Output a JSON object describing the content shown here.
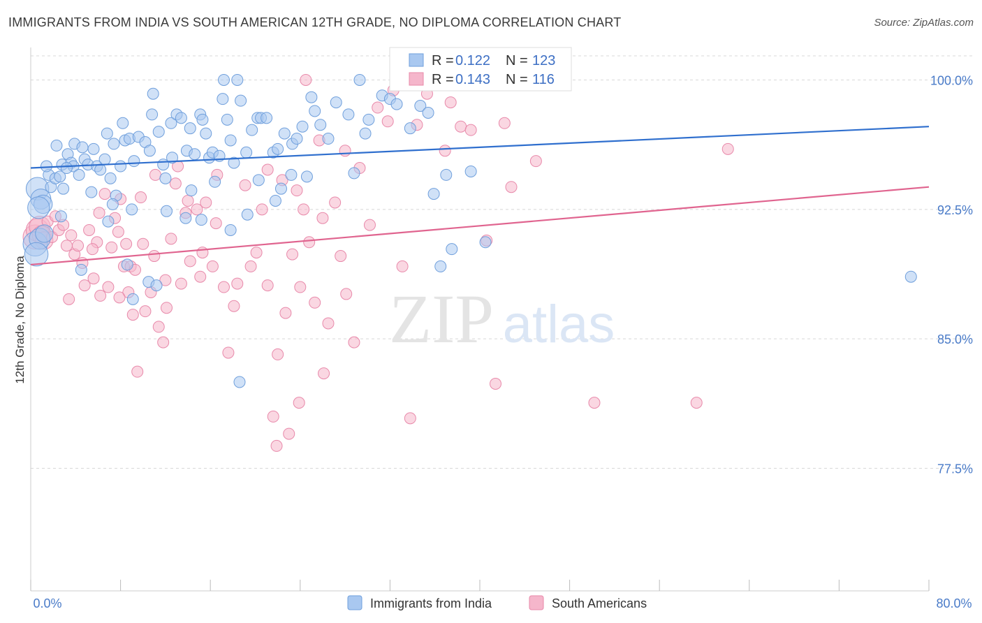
{
  "header": {
    "title": "IMMIGRANTS FROM INDIA VS SOUTH AMERICAN 12TH GRADE, NO DIPLOMA CORRELATION CHART",
    "source": "Source: ZipAtlas.com"
  },
  "watermark": {
    "zip": "ZIP",
    "atlas": "atlas"
  },
  "legend_box": {
    "rows": [
      {
        "r_key": "R =",
        "r_value": "0.122",
        "n_key": "N =",
        "n_value": "123",
        "color": "#8ab4e8"
      },
      {
        "r_key": "R =",
        "r_value": "0.143",
        "n_key": "N =",
        "n_value": "116",
        "color": "#f0a0bc"
      }
    ]
  },
  "colors": {
    "india_fill": "#a9c8f0",
    "india_stroke": "#6f9fdc",
    "india_line": "#2f6fce",
    "sa_fill": "#f5b6cb",
    "sa_stroke": "#e889aa",
    "sa_line": "#e0648f",
    "axis_text": "#4a7bc8",
    "grid": "#d8d8d8"
  },
  "chart_data": {
    "type": "scatter",
    "title": "IMMIGRANTS FROM INDIA VS SOUTH AMERICAN 12TH GRADE, NO DIPLOMA CORRELATION CHART",
    "xlabel": "",
    "ylabel": "12th Grade, No Diploma",
    "xlim": [
      0,
      80
    ],
    "ylim": [
      70.4,
      101.8
    ],
    "x_tick_labels": [
      "0.0%",
      "80.0%"
    ],
    "y_ticks": [
      77.5,
      85.0,
      92.5,
      100.0
    ],
    "y_tick_labels": [
      "77.5%",
      "85.0%",
      "92.5%",
      "100.0%"
    ],
    "grid": "horizontal dashed",
    "legend_placement": "bottom-center",
    "series": [
      {
        "name": "Immigrants from India",
        "R": 0.122,
        "N": 123,
        "trend": {
          "x": [
            0,
            80
          ],
          "y": [
            94.9,
            97.3
          ]
        },
        "points": [
          [
            0.6,
            93.7
          ],
          [
            0.9,
            93.1
          ],
          [
            1.1,
            92.8
          ],
          [
            1.6,
            94.5
          ],
          [
            1.8,
            93.8
          ],
          [
            2.2,
            94.3
          ],
          [
            2.6,
            94.4
          ],
          [
            2.8,
            95.1
          ],
          [
            2.9,
            93.7
          ],
          [
            3.3,
            95.7
          ],
          [
            3.6,
            95.2
          ],
          [
            3.8,
            95.0
          ],
          [
            3.9,
            96.3
          ],
          [
            4.3,
            94.5
          ],
          [
            4.6,
            96.1
          ],
          [
            4.8,
            95.4
          ],
          [
            5.1,
            95.1
          ],
          [
            5.6,
            96.0
          ],
          [
            5.9,
            95.0
          ],
          [
            6.2,
            94.8
          ],
          [
            6.6,
            95.4
          ],
          [
            6.8,
            96.9
          ],
          [
            7.1,
            94.3
          ],
          [
            7.4,
            96.3
          ],
          [
            7.6,
            93.3
          ],
          [
            8.0,
            95.0
          ],
          [
            8.2,
            97.5
          ],
          [
            8.4,
            96.5
          ],
          [
            8.8,
            96.6
          ],
          [
            9.2,
            95.3
          ],
          [
            9.6,
            96.7
          ],
          [
            10.2,
            96.4
          ],
          [
            10.6,
            95.9
          ],
          [
            10.8,
            98.0
          ],
          [
            10.9,
            99.2
          ],
          [
            11.4,
            97.0
          ],
          [
            11.8,
            95.1
          ],
          [
            12.0,
            94.3
          ],
          [
            12.5,
            97.5
          ],
          [
            12.6,
            95.5
          ],
          [
            13.0,
            98.0
          ],
          [
            13.4,
            97.8
          ],
          [
            13.9,
            95.9
          ],
          [
            14.2,
            97.2
          ],
          [
            14.6,
            95.7
          ],
          [
            15.1,
            98.0
          ],
          [
            15.3,
            97.7
          ],
          [
            15.6,
            96.9
          ],
          [
            15.9,
            95.5
          ],
          [
            16.2,
            95.8
          ],
          [
            16.8,
            95.6
          ],
          [
            17.1,
            98.9
          ],
          [
            17.2,
            100.0
          ],
          [
            17.5,
            97.7
          ],
          [
            17.8,
            96.5
          ],
          [
            18.1,
            95.2
          ],
          [
            18.4,
            100.0
          ],
          [
            18.7,
            98.8
          ],
          [
            19.2,
            95.8
          ],
          [
            19.7,
            97.1
          ],
          [
            20.2,
            97.8
          ],
          [
            20.5,
            97.8
          ],
          [
            21.0,
            97.8
          ],
          [
            21.6,
            95.8
          ],
          [
            22.0,
            96.0
          ],
          [
            22.3,
            93.7
          ],
          [
            22.6,
            96.9
          ],
          [
            23.3,
            96.3
          ],
          [
            23.7,
            96.6
          ],
          [
            24.2,
            97.3
          ],
          [
            24.6,
            94.4
          ],
          [
            25.0,
            99.0
          ],
          [
            25.3,
            98.2
          ],
          [
            25.8,
            97.4
          ],
          [
            26.5,
            96.6
          ],
          [
            27.2,
            98.7
          ],
          [
            28.3,
            98.0
          ],
          [
            28.8,
            94.6
          ],
          [
            29.3,
            100.0
          ],
          [
            29.8,
            96.9
          ],
          [
            30.1,
            97.7
          ],
          [
            31.3,
            99.1
          ],
          [
            32.0,
            98.9
          ],
          [
            32.6,
            98.6
          ],
          [
            33.8,
            97.2
          ],
          [
            34.7,
            98.5
          ],
          [
            35.4,
            98.1
          ],
          [
            35.9,
            93.4
          ],
          [
            37.0,
            94.5
          ],
          [
            37.5,
            90.2
          ],
          [
            39.2,
            94.7
          ],
          [
            40.5,
            90.6
          ],
          [
            36.5,
            89.2
          ],
          [
            0.4,
            90.5
          ],
          [
            0.8,
            90.8
          ],
          [
            1.2,
            91.1
          ],
          [
            0.5,
            89.9
          ],
          [
            0.7,
            92.6
          ],
          [
            9.0,
            92.5
          ],
          [
            12.1,
            92.4
          ],
          [
            13.8,
            92.0
          ],
          [
            15.2,
            91.9
          ],
          [
            17.8,
            91.3
          ],
          [
            18.6,
            82.5
          ],
          [
            9.1,
            87.3
          ],
          [
            10.5,
            88.3
          ],
          [
            11.2,
            88.1
          ],
          [
            20.3,
            94.2
          ],
          [
            23.2,
            94.5
          ],
          [
            5.4,
            93.5
          ],
          [
            3.2,
            94.9
          ],
          [
            6.9,
            91.8
          ],
          [
            8.6,
            89.3
          ],
          [
            4.5,
            89.0
          ],
          [
            2.7,
            92.1
          ],
          [
            7.3,
            92.8
          ],
          [
            14.3,
            93.6
          ],
          [
            16.4,
            94.1
          ],
          [
            19.3,
            92.2
          ],
          [
            21.8,
            93.0
          ],
          [
            1.4,
            95.0
          ],
          [
            2.3,
            96.2
          ],
          [
            78.4,
            88.6
          ]
        ]
      },
      {
        "name": "South Americans",
        "R": 0.143,
        "N": 116,
        "trend": {
          "x": [
            0,
            80
          ],
          "y": [
            89.3,
            93.8
          ]
        },
        "points": [
          [
            0.4,
            90.9
          ],
          [
            0.6,
            91.3
          ],
          [
            0.8,
            91.5
          ],
          [
            1.0,
            91.0
          ],
          [
            1.2,
            90.7
          ],
          [
            1.5,
            91.8
          ],
          [
            1.9,
            90.9
          ],
          [
            2.2,
            92.1
          ],
          [
            2.5,
            91.3
          ],
          [
            2.9,
            91.6
          ],
          [
            3.2,
            90.4
          ],
          [
            3.6,
            91.0
          ],
          [
            3.9,
            89.9
          ],
          [
            4.2,
            90.4
          ],
          [
            4.6,
            89.4
          ],
          [
            4.8,
            88.1
          ],
          [
            5.2,
            91.3
          ],
          [
            5.6,
            88.5
          ],
          [
            5.9,
            90.6
          ],
          [
            6.2,
            87.5
          ],
          [
            6.6,
            93.4
          ],
          [
            6.9,
            88.0
          ],
          [
            7.2,
            90.3
          ],
          [
            7.5,
            92.0
          ],
          [
            7.8,
            91.2
          ],
          [
            8.0,
            93.1
          ],
          [
            8.3,
            89.2
          ],
          [
            8.5,
            90.5
          ],
          [
            8.9,
            89.2
          ],
          [
            9.1,
            86.4
          ],
          [
            9.5,
            83.1
          ],
          [
            9.8,
            93.2
          ],
          [
            10.2,
            86.6
          ],
          [
            10.7,
            87.7
          ],
          [
            11.1,
            94.5
          ],
          [
            11.4,
            85.7
          ],
          [
            11.8,
            84.8
          ],
          [
            12.1,
            86.8
          ],
          [
            12.5,
            90.8
          ],
          [
            12.9,
            94.0
          ],
          [
            13.4,
            88.2
          ],
          [
            13.8,
            92.3
          ],
          [
            14.2,
            89.5
          ],
          [
            14.8,
            92.5
          ],
          [
            15.1,
            88.6
          ],
          [
            15.6,
            92.9
          ],
          [
            16.2,
            89.2
          ],
          [
            16.6,
            94.5
          ],
          [
            17.2,
            88.0
          ],
          [
            17.6,
            84.2
          ],
          [
            18.1,
            86.9
          ],
          [
            18.4,
            88.2
          ],
          [
            19.1,
            93.9
          ],
          [
            19.6,
            89.2
          ],
          [
            20.1,
            90.0
          ],
          [
            20.6,
            92.5
          ],
          [
            21.1,
            88.1
          ],
          [
            21.6,
            80.5
          ],
          [
            22.0,
            84.1
          ],
          [
            22.7,
            86.5
          ],
          [
            23.3,
            89.9
          ],
          [
            23.9,
            81.3
          ],
          [
            24.3,
            92.5
          ],
          [
            24.8,
            90.6
          ],
          [
            25.3,
            87.1
          ],
          [
            25.7,
            96.5
          ],
          [
            26.1,
            83.0
          ],
          [
            26.5,
            85.9
          ],
          [
            27.1,
            92.9
          ],
          [
            27.6,
            89.8
          ],
          [
            28.1,
            87.6
          ],
          [
            28.8,
            84.8
          ],
          [
            29.3,
            94.9
          ],
          [
            30.2,
            91.6
          ],
          [
            30.9,
            98.4
          ],
          [
            31.8,
            97.6
          ],
          [
            32.3,
            99.4
          ],
          [
            33.1,
            89.2
          ],
          [
            33.8,
            80.4
          ],
          [
            34.4,
            97.4
          ],
          [
            35.3,
            99.2
          ],
          [
            36.9,
            95.9
          ],
          [
            37.4,
            98.7
          ],
          [
            38.3,
            97.3
          ],
          [
            39.2,
            97.1
          ],
          [
            40.6,
            90.7
          ],
          [
            41.4,
            82.4
          ],
          [
            42.2,
            97.5
          ],
          [
            42.8,
            93.8
          ],
          [
            45.0,
            95.3
          ],
          [
            50.2,
            81.3
          ],
          [
            59.3,
            81.3
          ],
          [
            62.1,
            96.0
          ],
          [
            21.1,
            94.8
          ],
          [
            22.4,
            94.2
          ],
          [
            23.7,
            93.6
          ],
          [
            24.0,
            88.0
          ],
          [
            26.0,
            92.0
          ],
          [
            28.0,
            95.9
          ],
          [
            16.5,
            91.7
          ],
          [
            15.3,
            90.0
          ],
          [
            14.0,
            93.0
          ],
          [
            13.1,
            95.0
          ],
          [
            12.0,
            88.4
          ],
          [
            11.0,
            89.8
          ],
          [
            10.0,
            90.5
          ],
          [
            9.3,
            89.0
          ],
          [
            8.7,
            87.7
          ],
          [
            7.9,
            87.4
          ],
          [
            5.5,
            90.2
          ],
          [
            3.4,
            87.3
          ],
          [
            6.1,
            92.3
          ],
          [
            24.5,
            100.0
          ],
          [
            32.8,
            100.0
          ],
          [
            21.9,
            78.8
          ],
          [
            23.0,
            79.5
          ]
        ]
      }
    ]
  }
}
